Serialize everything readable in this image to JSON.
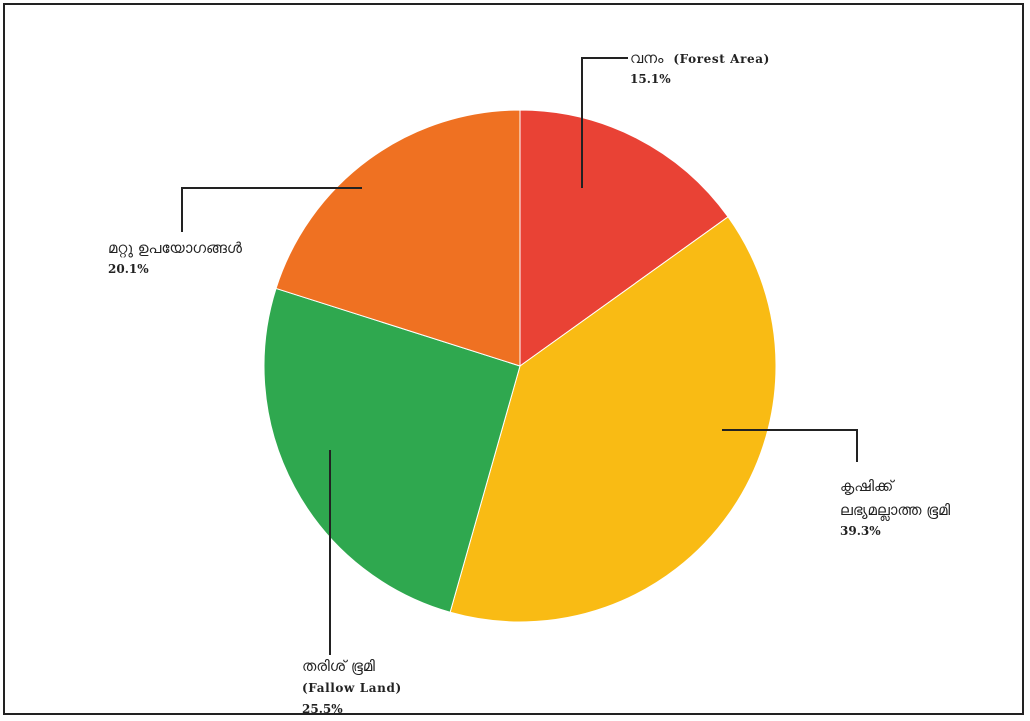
{
  "chart_data": {
    "type": "pie",
    "start_angle_deg": 0,
    "direction": "clockwise",
    "slices": [
      {
        "name": "വനം",
        "name_en": "(Forest Area)",
        "percent": 15.1,
        "label": "15.1%",
        "color": "#e94235"
      },
      {
        "name": "കൃഷിക്ക്",
        "name_line2": "ലഭ്യമല്ലാത്ത ഭൂമി",
        "percent": 39.3,
        "label": "39.3%",
        "color": "#f9bb14"
      },
      {
        "name": "തരിശ് ഭൂമി",
        "name_en": "(Fallow Land)",
        "percent": 25.5,
        "label": "25.5%",
        "color": "#2fa84f"
      },
      {
        "name": "മറ്റു ഉപയോഗങ്ങൾ",
        "percent": 20.1,
        "label": "20.1%",
        "color": "#ef7122"
      }
    ]
  }
}
